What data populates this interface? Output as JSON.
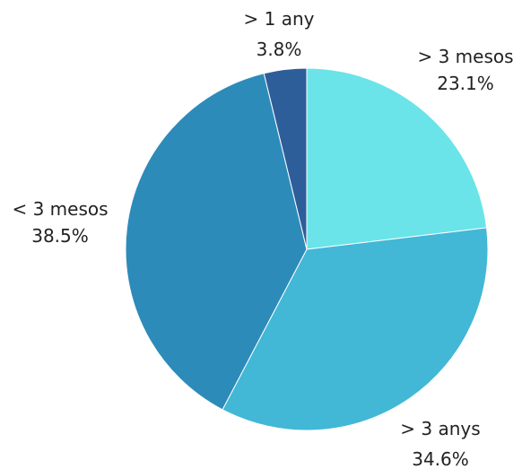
{
  "chart_data": {
    "type": "pie",
    "title": "",
    "start_angle_deg": 0,
    "direction": "clockwise",
    "slices": [
      {
        "label": "> 3 mesos",
        "value": 23.1,
        "value_label": "23.1%",
        "color": "#6ae4e9"
      },
      {
        "label": "> 3 anys",
        "value": 34.6,
        "value_label": "34.6%",
        "color": "#42b7d6"
      },
      {
        "label": "< 3 mesos",
        "value": 38.5,
        "value_label": "38.5%",
        "color": "#2d8bba"
      },
      {
        "label": "> 1 any",
        "value": 3.8,
        "value_label": "3.8%",
        "color": "#2e5e9a"
      }
    ],
    "legend": "none"
  }
}
